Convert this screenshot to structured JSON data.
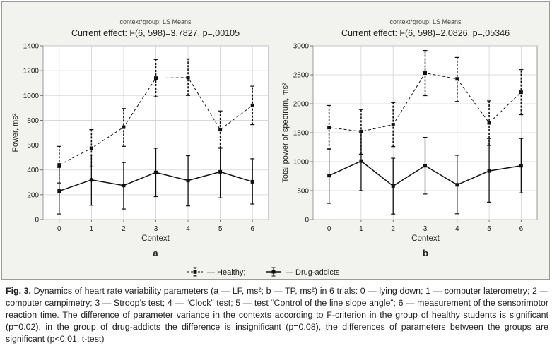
{
  "figure": {
    "caption_label": "Fig. 3.",
    "caption_text": "Dynamics of heart rate variability parameters (a — LF, ms²; b — TP, ms²) in 6 trials: 0 — lying down; 1 — computer laterometry; 2 — computer campimetry; 3 — Stroop’s test; 4 — “Clock” test; 5 — test “Control of the line slope angle”; 6 — measurement of the sensorimotor reaction time. The difference of parameter variance in the contexts according to F-criterion in the group of healthy students is significant (p=0.02), in the group of drug-addicts the difference is insignificant (p=0.08), the differences of parameters between the groups are significant (p<0.01,  t-test)",
    "legend": {
      "healthy": "— Healthy;",
      "drug_addicts": "— Drug-addicts"
    }
  },
  "chart_data": [
    {
      "type": "line",
      "panel_label": "a",
      "header": "context*group; LS Means",
      "title": "Current effect: F(6, 598)=3,7827, p=,00105",
      "xlabel": "Context",
      "ylabel": "Power, ms²",
      "x": [
        0,
        1,
        2,
        3,
        4,
        5,
        6
      ],
      "x_ticks": [
        "0",
        "1",
        "2",
        "3",
        "4",
        "5",
        "6"
      ],
      "y_ticks": [
        "0",
        "200",
        "400",
        "600",
        "800",
        "1000",
        "1200",
        "1400"
      ],
      "ylim": [
        0,
        1400
      ],
      "grid": true,
      "series": [
        {
          "name": "Healthy",
          "style": "dashed",
          "values": [
            440,
            575,
            745,
            1140,
            1145,
            725,
            920
          ],
          "err_low": [
            295,
            425,
            590,
            990,
            1000,
            575,
            765
          ],
          "err_high": [
            590,
            725,
            895,
            1290,
            1295,
            875,
            1075
          ]
        },
        {
          "name": "Drug-addicts",
          "style": "solid",
          "values": [
            230,
            320,
            275,
            380,
            315,
            385,
            305
          ],
          "err_low": [
            45,
            115,
            85,
            185,
            110,
            175,
            125
          ],
          "err_high": [
            420,
            520,
            460,
            575,
            515,
            580,
            490
          ]
        }
      ]
    },
    {
      "type": "line",
      "panel_label": "b",
      "header": "context*group; LS Means",
      "title": "Current effect: F(6, 598)=2,0826, p=,05346",
      "xlabel": "Context",
      "ylabel": "Total power of spectrum, ms²",
      "x": [
        0,
        1,
        2,
        3,
        4,
        5,
        6
      ],
      "x_ticks": [
        "0",
        "1",
        "2",
        "3",
        "4",
        "5",
        "6"
      ],
      "y_ticks": [
        "0",
        "500",
        "1000",
        "1500",
        "2000",
        "2500",
        "3000"
      ],
      "ylim": [
        0,
        3000
      ],
      "grid": true,
      "series": [
        {
          "name": "Healthy",
          "style": "dashed",
          "values": [
            1590,
            1520,
            1640,
            2530,
            2430,
            1670,
            2200
          ],
          "err_low": [
            1210,
            1130,
            1260,
            2140,
            2040,
            1280,
            1810
          ],
          "err_high": [
            1970,
            1900,
            2020,
            2920,
            2800,
            2050,
            2590
          ]
        },
        {
          "name": "Drug-addicts",
          "style": "solid",
          "values": [
            760,
            1010,
            580,
            930,
            600,
            840,
            930
          ],
          "err_low": [
            280,
            500,
            95,
            440,
            100,
            300,
            460
          ],
          "err_high": [
            1230,
            1500,
            1060,
            1420,
            1110,
            1400,
            1400
          ]
        }
      ]
    }
  ]
}
